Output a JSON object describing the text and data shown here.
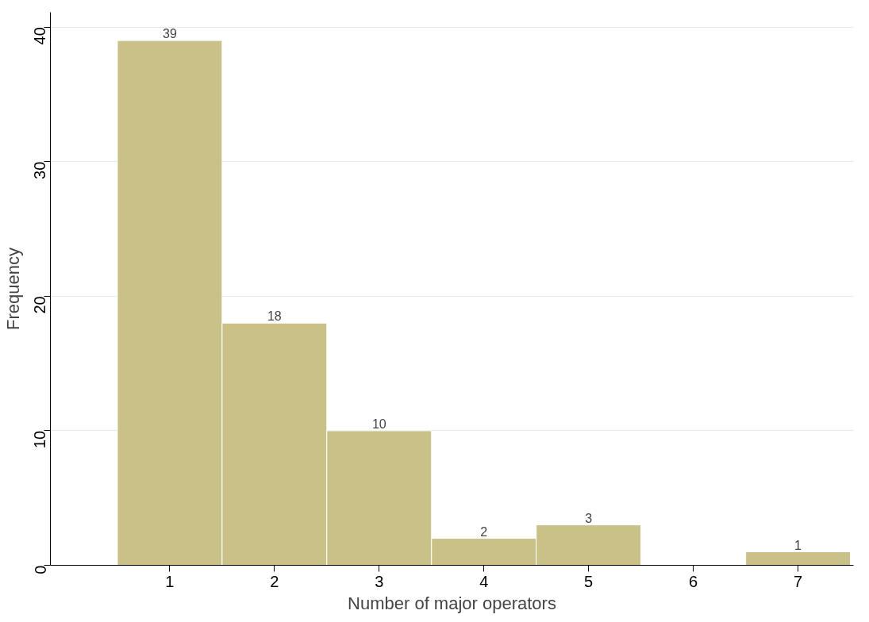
{
  "chart_data": {
    "type": "histogram",
    "xlabel": "Number of major operators",
    "ylabel": "Frequency",
    "bins": [
      0.5,
      1.5,
      2.5,
      3.5,
      4.5,
      5.5,
      6.5,
      7.5
    ],
    "values": [
      39,
      18,
      10,
      2,
      3,
      0,
      1
    ],
    "value_labels": [
      "39",
      "18",
      "10",
      "2",
      "3",
      null,
      "1"
    ],
    "color": "#c9c188",
    "xlim": [
      -0.14,
      7.53
    ],
    "ylim": [
      0,
      41.1
    ],
    "xticks": [
      1,
      2,
      3,
      4,
      5,
      6,
      7
    ],
    "yticks": [
      0,
      10,
      20,
      30,
      40
    ],
    "grid": "y"
  }
}
